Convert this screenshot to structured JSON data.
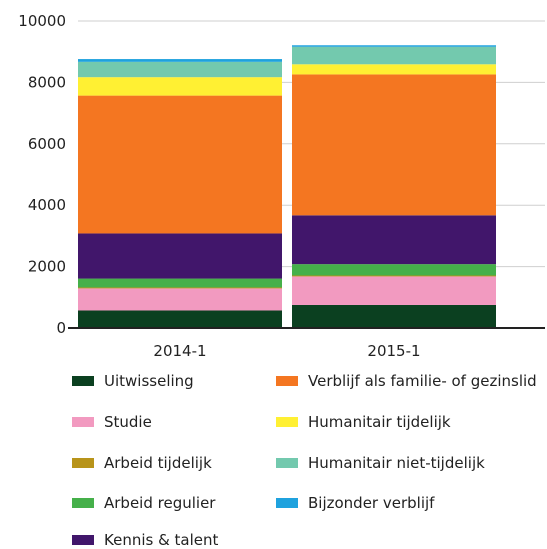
{
  "chart_data": {
    "type": "bar",
    "stacked": true,
    "categories": [
      "2014-1",
      "2015-1"
    ],
    "ylim": [
      0,
      10000
    ],
    "yticks": [
      0,
      2000,
      4000,
      6000,
      8000,
      10000
    ],
    "ytick_labels": [
      "0",
      "2000",
      "4000",
      "6000",
      "8000",
      "10000"
    ],
    "grid": true,
    "legend_position": "bottom",
    "series": [
      {
        "name": "Uitwisseling",
        "color": "#0b4020",
        "values": [
          570,
          750
        ]
      },
      {
        "name": "Studie",
        "color": "#f29ac0",
        "values": [
          720,
          930
        ]
      },
      {
        "name": "Arbeid tijdelijk",
        "color": "#b8941a",
        "values": [
          30,
          30
        ]
      },
      {
        "name": "Arbeid regulier",
        "color": "#45b04a",
        "values": [
          290,
          370
        ]
      },
      {
        "name": "Kennis & talent",
        "color": "#41166b",
        "values": [
          1470,
          1590
        ]
      },
      {
        "name": "Verblijf als familie- of gezinslid",
        "color": "#f47621",
        "values": [
          4490,
          4590
        ]
      },
      {
        "name": "Humanitair tijdelijk",
        "color": "#fff033",
        "values": [
          600,
          330
        ]
      },
      {
        "name": "Humanitair niet-tijdelijk",
        "color": "#73c9ae",
        "values": [
          500,
          570
        ]
      },
      {
        "name": "Bijzonder verblijf",
        "color": "#1fa2de",
        "values": [
          90,
          50
        ]
      }
    ]
  }
}
